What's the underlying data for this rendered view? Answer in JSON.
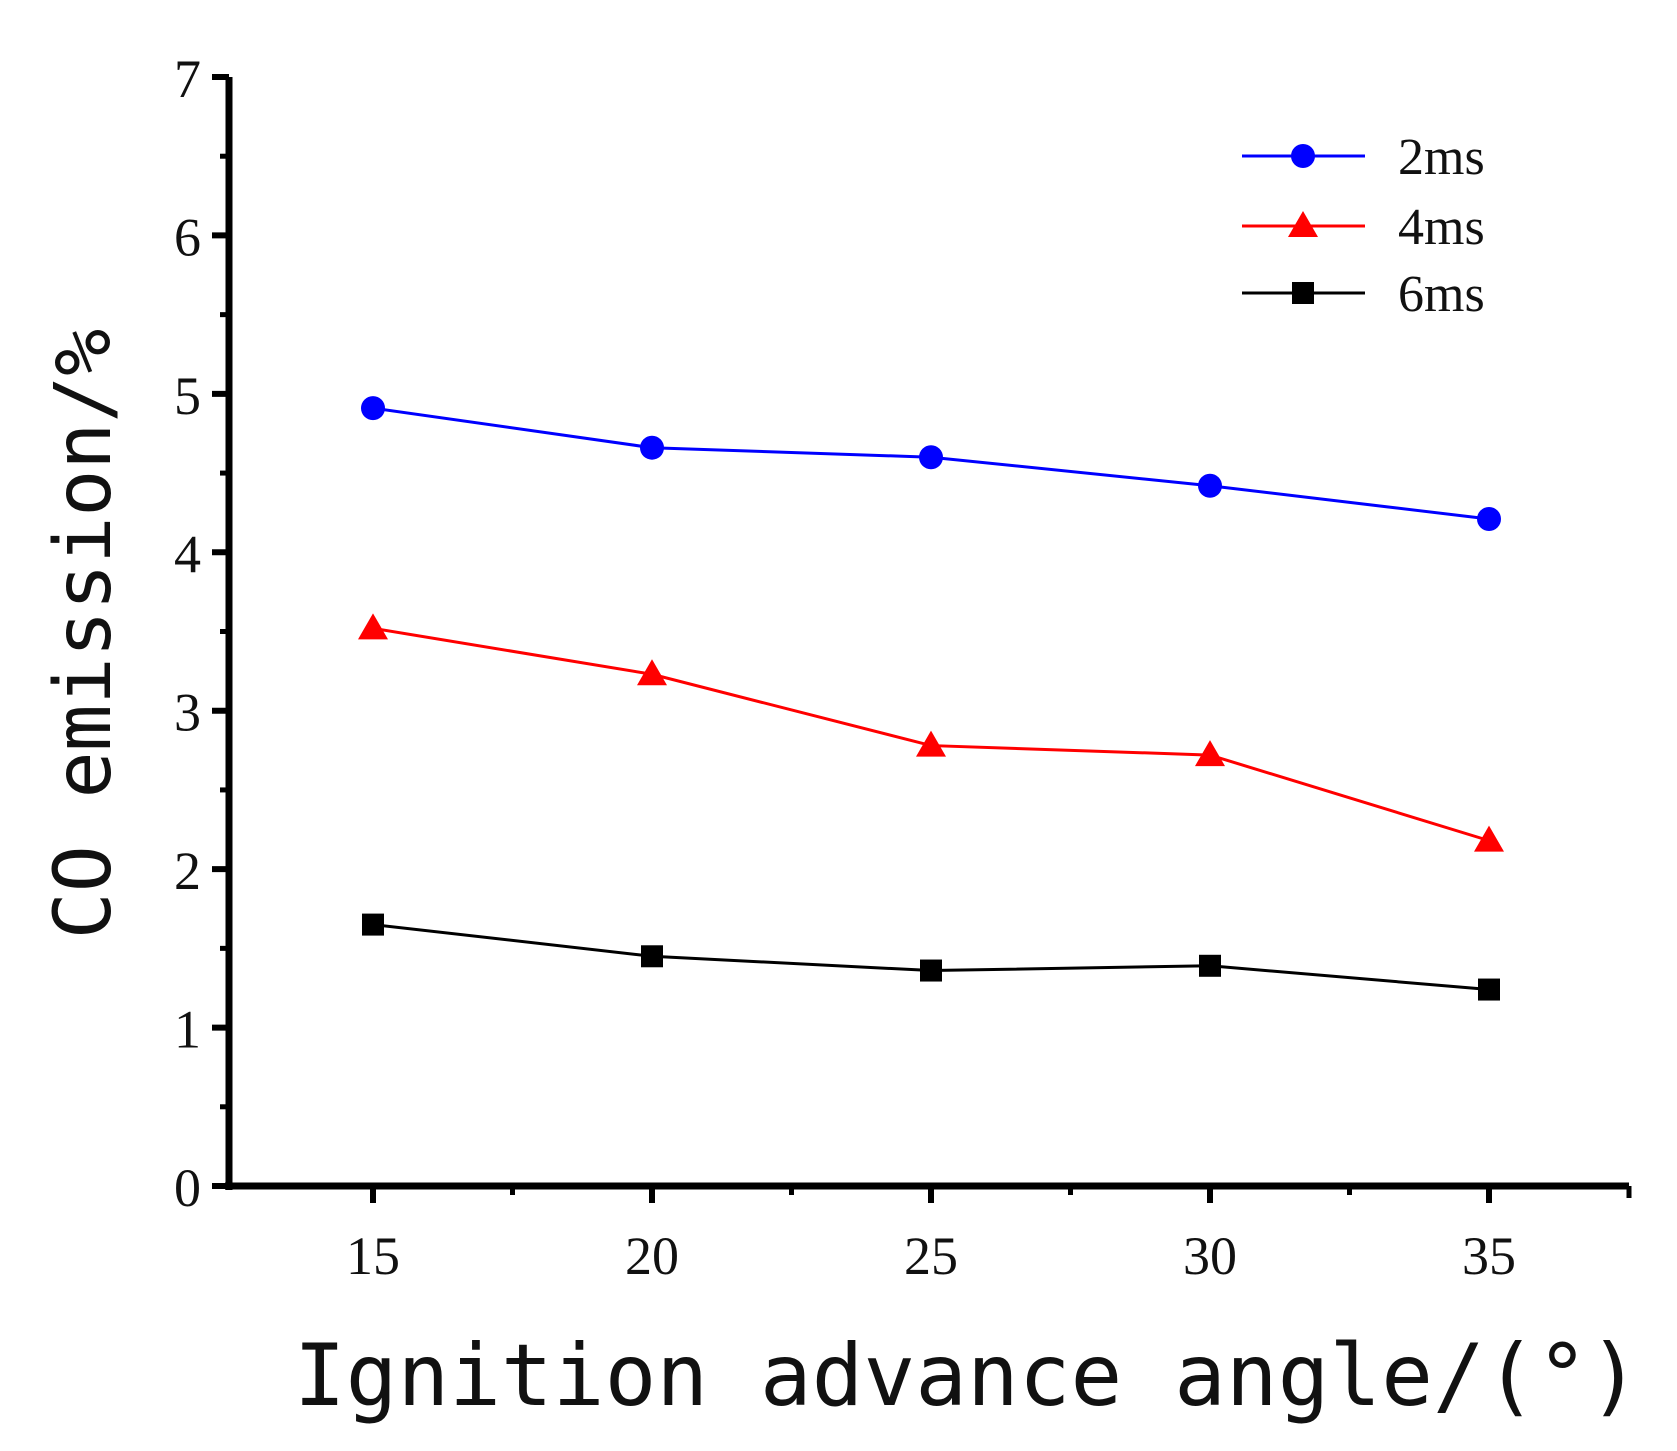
{
  "chart_data": {
    "type": "line",
    "title": "",
    "xlabel": "Ignition advance angle/(°)",
    "ylabel": "CO emission/%",
    "x": [
      15,
      20,
      25,
      30,
      35
    ],
    "xlim": [
      12.4,
      37.5
    ],
    "ylim": [
      0,
      7
    ],
    "xticks": [
      "15",
      "20",
      "25",
      "30",
      "35"
    ],
    "yticks": [
      "0",
      "1",
      "2",
      "3",
      "4",
      "5",
      "6",
      "7"
    ],
    "grid": false,
    "legend_position": "top-right",
    "series": [
      {
        "name": "2ms",
        "color": "#0000ff",
        "marker": "circle",
        "values": [
          4.91,
          4.66,
          4.6,
          4.42,
          4.21
        ]
      },
      {
        "name": "4ms",
        "color": "#ff0000",
        "marker": "triangle",
        "values": [
          3.52,
          3.23,
          2.78,
          2.72,
          2.18
        ]
      },
      {
        "name": "6ms",
        "color": "#000000",
        "marker": "square",
        "values": [
          1.65,
          1.45,
          1.36,
          1.39,
          1.24
        ]
      }
    ]
  }
}
